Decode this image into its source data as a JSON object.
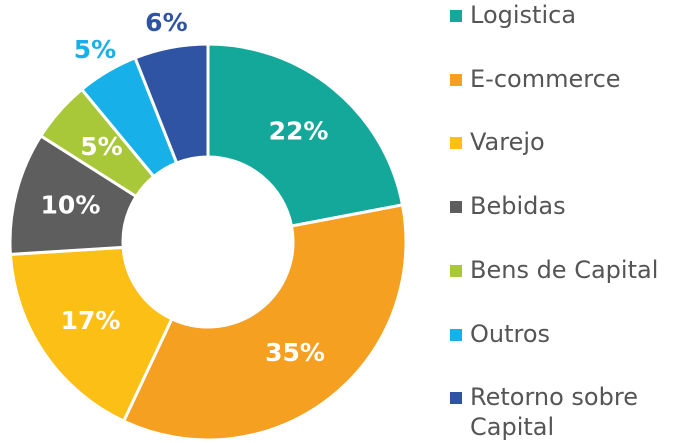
{
  "chart_data": {
    "type": "donut",
    "categories": [
      "Logistica",
      "E-commerce",
      "Varejo",
      "Bebidas",
      "Bens de Capital",
      "Outros",
      "Retorno sobre Capital"
    ],
    "values": [
      22,
      35,
      17,
      10,
      5,
      5,
      6
    ],
    "value_labels": [
      "22%",
      "35%",
      "17%",
      "10%",
      "5%",
      "5%",
      "6%"
    ],
    "colors": [
      "#14a89a",
      "#f5a021",
      "#fbbf16",
      "#5e5e5e",
      "#a8c83a",
      "#17b0e8",
      "#2e54a3"
    ],
    "legend": "right"
  }
}
